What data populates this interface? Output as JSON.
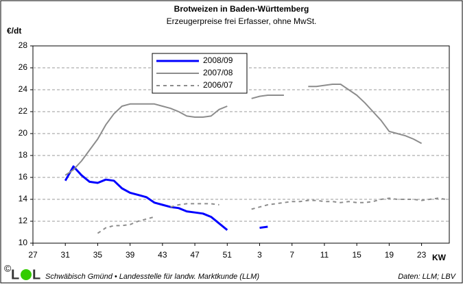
{
  "chart_data": {
    "type": "line",
    "title": "Brotweizen in Baden-Württemberg",
    "subtitle": "Erzeugerpreise frei Erfasser, ohne MwSt.",
    "y_label": "€/dt",
    "x_label": "KW",
    "categories": [
      27,
      null,
      null,
      null,
      31,
      null,
      null,
      null,
      35,
      null,
      null,
      null,
      39,
      null,
      null,
      null,
      43,
      null,
      null,
      null,
      47,
      null,
      null,
      null,
      51,
      null,
      null,
      null,
      3,
      null,
      null,
      null,
      7,
      null,
      null,
      null,
      11,
      null,
      null,
      null,
      15,
      null,
      null,
      null,
      19,
      null,
      null,
      null,
      23,
      null,
      null,
      null
    ],
    "series": [
      {
        "name": "2008/09",
        "color": "#0000ff",
        "linewidth": 3,
        "values": [
          null,
          null,
          null,
          null,
          15.7,
          17.0,
          16.2,
          15.6,
          15.5,
          15.8,
          15.7,
          15.0,
          14.6,
          14.4,
          14.2,
          13.7,
          13.5,
          13.3,
          13.2,
          12.9,
          12.8,
          12.7,
          12.4,
          11.8,
          11.2,
          null,
          null,
          null,
          11.4,
          11.5,
          null,
          null,
          null,
          null,
          null,
          null,
          null,
          null,
          null,
          null,
          null,
          null,
          null,
          null,
          null,
          null,
          null,
          null,
          null,
          null,
          null,
          null
        ]
      },
      {
        "name": "2007/08",
        "color": "#8c8c8c",
        "linewidth": 2,
        "values": [
          null,
          null,
          null,
          null,
          16.2,
          16.7,
          17.5,
          18.5,
          19.5,
          20.8,
          21.8,
          22.5,
          22.7,
          22.7,
          22.7,
          22.7,
          22.5,
          22.3,
          22.0,
          21.6,
          21.5,
          21.5,
          21.6,
          22.2,
          22.5,
          null,
          null,
          23.2,
          23.4,
          23.5,
          23.5,
          23.5,
          null,
          null,
          24.3,
          24.3,
          24.4,
          24.5,
          24.5,
          24.0,
          23.5,
          22.8,
          22.0,
          21.2,
          20.2,
          20.0,
          19.8,
          19.5,
          19.1,
          null,
          null,
          null
        ]
      },
      {
        "name": "2006/07",
        "color": "#8c8c8c",
        "linewidth": 2,
        "dash": true,
        "values": [
          null,
          null,
          null,
          null,
          null,
          null,
          null,
          null,
          10.9,
          11.4,
          11.6,
          11.6,
          11.7,
          12.0,
          12.2,
          12.4,
          null,
          13.3,
          13.5,
          13.6,
          13.6,
          13.6,
          13.6,
          13.5,
          null,
          null,
          null,
          13.1,
          13.3,
          13.5,
          13.6,
          13.7,
          13.8,
          13.8,
          13.9,
          13.9,
          13.8,
          13.8,
          13.7,
          13.8,
          13.7,
          13.7,
          13.8,
          14.0,
          14.1,
          14.0,
          14.0,
          14.0,
          13.9,
          14.0,
          14.1,
          14.0
        ]
      }
    ],
    "ylim": [
      10,
      28
    ],
    "yticks": [
      10,
      12,
      14,
      16,
      18,
      20,
      22,
      24,
      26,
      28
    ],
    "grid": true,
    "legend": "upper left"
  },
  "footer": {
    "copyright": "©",
    "logo": [
      "L",
      "L"
    ],
    "source": "Schwäbisch Gmünd • Landesstelle für landw. Marktkunde (LLM)",
    "data": "Daten: LLM; LBV"
  }
}
